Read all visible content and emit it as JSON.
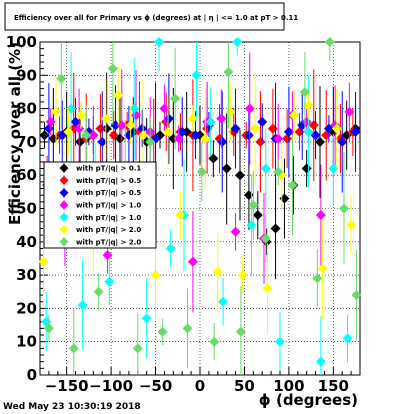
{
  "chart_data": {
    "type": "scatter",
    "title": "Efficiency over all for Primary vs ϕ (degrees) at | η | <= 1.0 at pT > 0.11",
    "xlabel": "ϕ (degrees)",
    "ylabel": "Efficiency over all (%)",
    "xlim": [
      -180,
      180
    ],
    "ylim": [
      0,
      100
    ],
    "xticks": [
      -150,
      -100,
      -50,
      0,
      50,
      100,
      150
    ],
    "yticks": [
      0,
      10,
      20,
      30,
      40,
      50,
      60,
      70,
      80,
      90,
      100
    ],
    "grid": true,
    "legend_position": "left-center",
    "timestamp": "Wed May 23 10:30:19 2018",
    "series": [
      {
        "name": "with pT/|q| > 0.1",
        "color": "#000000",
        "x": [
          -175,
          -165,
          -150,
          -135,
          -120,
          -105,
          -90,
          -75,
          -60,
          -45,
          -30,
          -15,
          0,
          15,
          30,
          45,
          55,
          65,
          75,
          85,
          95,
          105,
          120,
          135,
          150,
          165,
          175
        ],
        "y": [
          72,
          71,
          73,
          70,
          72,
          74,
          71,
          73,
          70,
          72,
          71,
          73,
          72,
          65,
          62,
          60,
          54,
          48,
          40,
          44,
          53,
          57,
          62,
          70,
          73,
          72,
          74
        ]
      },
      {
        "name": "with pT/|q| > 0.5",
        "color": "#ff0000",
        "x": [
          -172,
          -158,
          -142,
          -128,
          -112,
          -97,
          -82,
          -68,
          -52,
          -38,
          -22,
          -8,
          8,
          22,
          38,
          52,
          68,
          82,
          98,
          112,
          128,
          142,
          158,
          172
        ],
        "y": [
          57,
          72,
          74,
          71,
          74,
          72,
          75,
          73,
          71,
          76,
          73,
          72,
          74,
          71,
          73,
          72,
          70,
          74,
          71,
          73,
          75,
          72,
          71,
          73
        ]
      },
      {
        "name": "with pT/|q| > 0.5",
        "color": "#0000ff",
        "x": [
          -170,
          -155,
          -140,
          -125,
          -110,
          -95,
          -80,
          -65,
          -50,
          -35,
          -20,
          -5,
          10,
          25,
          40,
          55,
          70,
          85,
          100,
          115,
          130,
          145,
          160,
          175
        ],
        "y": [
          74,
          72,
          76,
          73,
          70,
          75,
          72,
          74,
          71,
          77,
          73,
          72,
          75,
          70,
          74,
          72,
          76,
          71,
          73,
          75,
          72,
          74,
          70,
          73
        ]
      },
      {
        "name": "with pT/|q| > 1.0",
        "color": "#ff00ff",
        "x": [
          -168,
          -152,
          -136,
          -120,
          -104,
          -88,
          -72,
          -56,
          -40,
          -24,
          -8,
          8,
          24,
          40,
          56,
          72,
          88,
          104,
          120,
          136,
          152,
          168
        ],
        "y": [
          76,
          48,
          74,
          72,
          36,
          75,
          78,
          73,
          80,
          71,
          34,
          76,
          77,
          43,
          80,
          41,
          71,
          78,
          76,
          48,
          75,
          79
        ]
      },
      {
        "name": "with pT/|q| > 1.0",
        "color": "#00ffff",
        "x": [
          -173,
          -160,
          -145,
          -132,
          -118,
          -102,
          -88,
          -74,
          -60,
          -46,
          -33,
          -18,
          -4,
          12,
          26,
          42,
          58,
          74,
          90,
          106,
          122,
          136,
          150,
          166
        ],
        "y": [
          16,
          47,
          80,
          21,
          59,
          28,
          57,
          80,
          17,
          100,
          38,
          48,
          90,
          76,
          22,
          100,
          45,
          62,
          10,
          78,
          73,
          4,
          62,
          11
        ]
      },
      {
        "name": "with pT/|q| > 2.0",
        "color": "#ffff00",
        "x": [
          -176,
          -162,
          -148,
          -134,
          -120,
          -106,
          -92,
          -78,
          -64,
          -50,
          -36,
          -22,
          -8,
          6,
          20,
          34,
          48,
          62,
          76,
          92,
          106,
          122,
          138,
          154,
          170
        ],
        "y": [
          34,
          79,
          73,
          78,
          45,
          77,
          84,
          75,
          72,
          30,
          73,
          48,
          77,
          71,
          31,
          79,
          30,
          74,
          26,
          60,
          78,
          81,
          32,
          74,
          45
        ]
      },
      {
        "name": "with pT/|q| > 2.0",
        "color": "#66dd66",
        "x": [
          -170,
          -156,
          -142,
          -128,
          -114,
          -98,
          -84,
          -70,
          -56,
          -42,
          -28,
          -14,
          2,
          16,
          32,
          46,
          60,
          74,
          88,
          104,
          118,
          132,
          146,
          162,
          176
        ],
        "y": [
          14,
          89,
          8,
          72,
          25,
          92,
          63,
          8,
          70,
          13,
          83,
          14,
          61,
          10,
          91,
          13,
          51,
          41,
          61,
          57,
          85,
          29,
          100,
          50,
          24
        ]
      }
    ]
  },
  "legend": {
    "entries": [
      {
        "label": "with pT/|q| > 0.1",
        "color": "#000000"
      },
      {
        "label": "with pT/|q| > 0.5",
        "color": "#ff0000"
      },
      {
        "label": "with pT/|q| > 0.5",
        "color": "#0000ff"
      },
      {
        "label": "with pT/|q| > 1.0",
        "color": "#ff00ff"
      },
      {
        "label": "with pT/|q| > 1.0",
        "color": "#00ffff"
      },
      {
        "label": "with pT/|q| > 2.0",
        "color": "#ffff00"
      },
      {
        "label": "with pT/|q| > 2.0",
        "color": "#66dd66"
      }
    ]
  },
  "marker_shape": "diamond"
}
